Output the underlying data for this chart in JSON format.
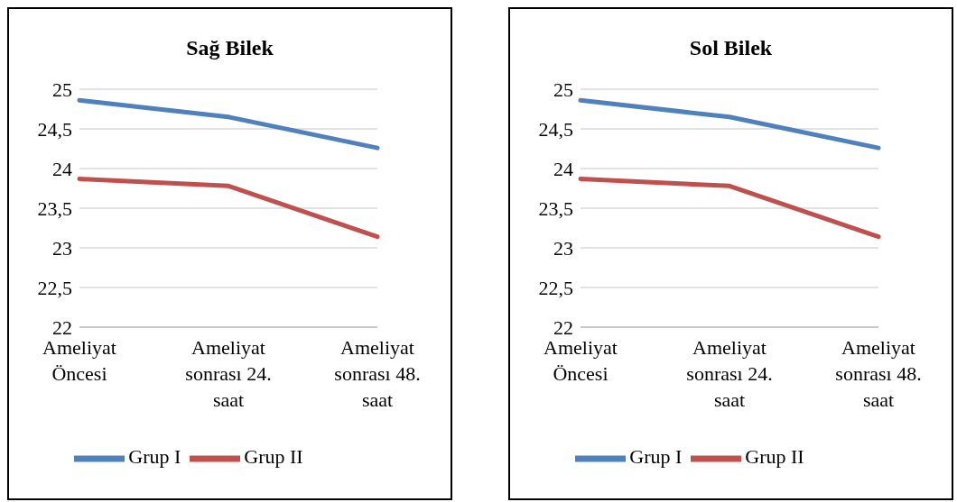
{
  "chart_data": [
    {
      "type": "line",
      "title": "Sağ Bilek",
      "categories": [
        "Ameliyat Öncesi",
        "Ameliyat sonrası 24. saat",
        "Ameliyat sonrası 48. saat"
      ],
      "series": [
        {
          "name": "Grup I",
          "color": "#4f81bd",
          "values": [
            24.86,
            24.65,
            24.26
          ]
        },
        {
          "name": "Grup II",
          "color": "#c0504d",
          "values": [
            23.87,
            23.78,
            23.14
          ]
        }
      ],
      "ylim": [
        22,
        25
      ],
      "yticks": [
        22,
        {
          "value": 22.5,
          "label": "22,5"
        },
        23,
        {
          "value": 23.5,
          "label": "23,5"
        },
        24,
        {
          "value": 24.5,
          "label": "24,5"
        },
        25
      ],
      "grid": "y",
      "legend": "bottom",
      "marker": "none",
      "line_style": "solid"
    },
    {
      "type": "line",
      "title": "Sol Bilek",
      "categories": [
        "Ameliyat Öncesi",
        "Ameliyat sonrası 24. saat",
        "Ameliyat sonrası 48. saat"
      ],
      "series": [
        {
          "name": "Grup I",
          "color": "#4f81bd",
          "values": [
            24.86,
            24.65,
            24.26
          ]
        },
        {
          "name": "Grup II",
          "color": "#c0504d",
          "values": [
            23.87,
            23.78,
            23.14
          ]
        }
      ],
      "ylim": [
        22,
        25
      ],
      "yticks": [
        22,
        {
          "value": 22.5,
          "label": "22,5"
        },
        23,
        {
          "value": 23.5,
          "label": "23,5"
        },
        24,
        {
          "value": 24.5,
          "label": "24,5"
        },
        25
      ],
      "grid": "y",
      "legend": "bottom",
      "marker": "none",
      "line_style": "solid"
    }
  ]
}
